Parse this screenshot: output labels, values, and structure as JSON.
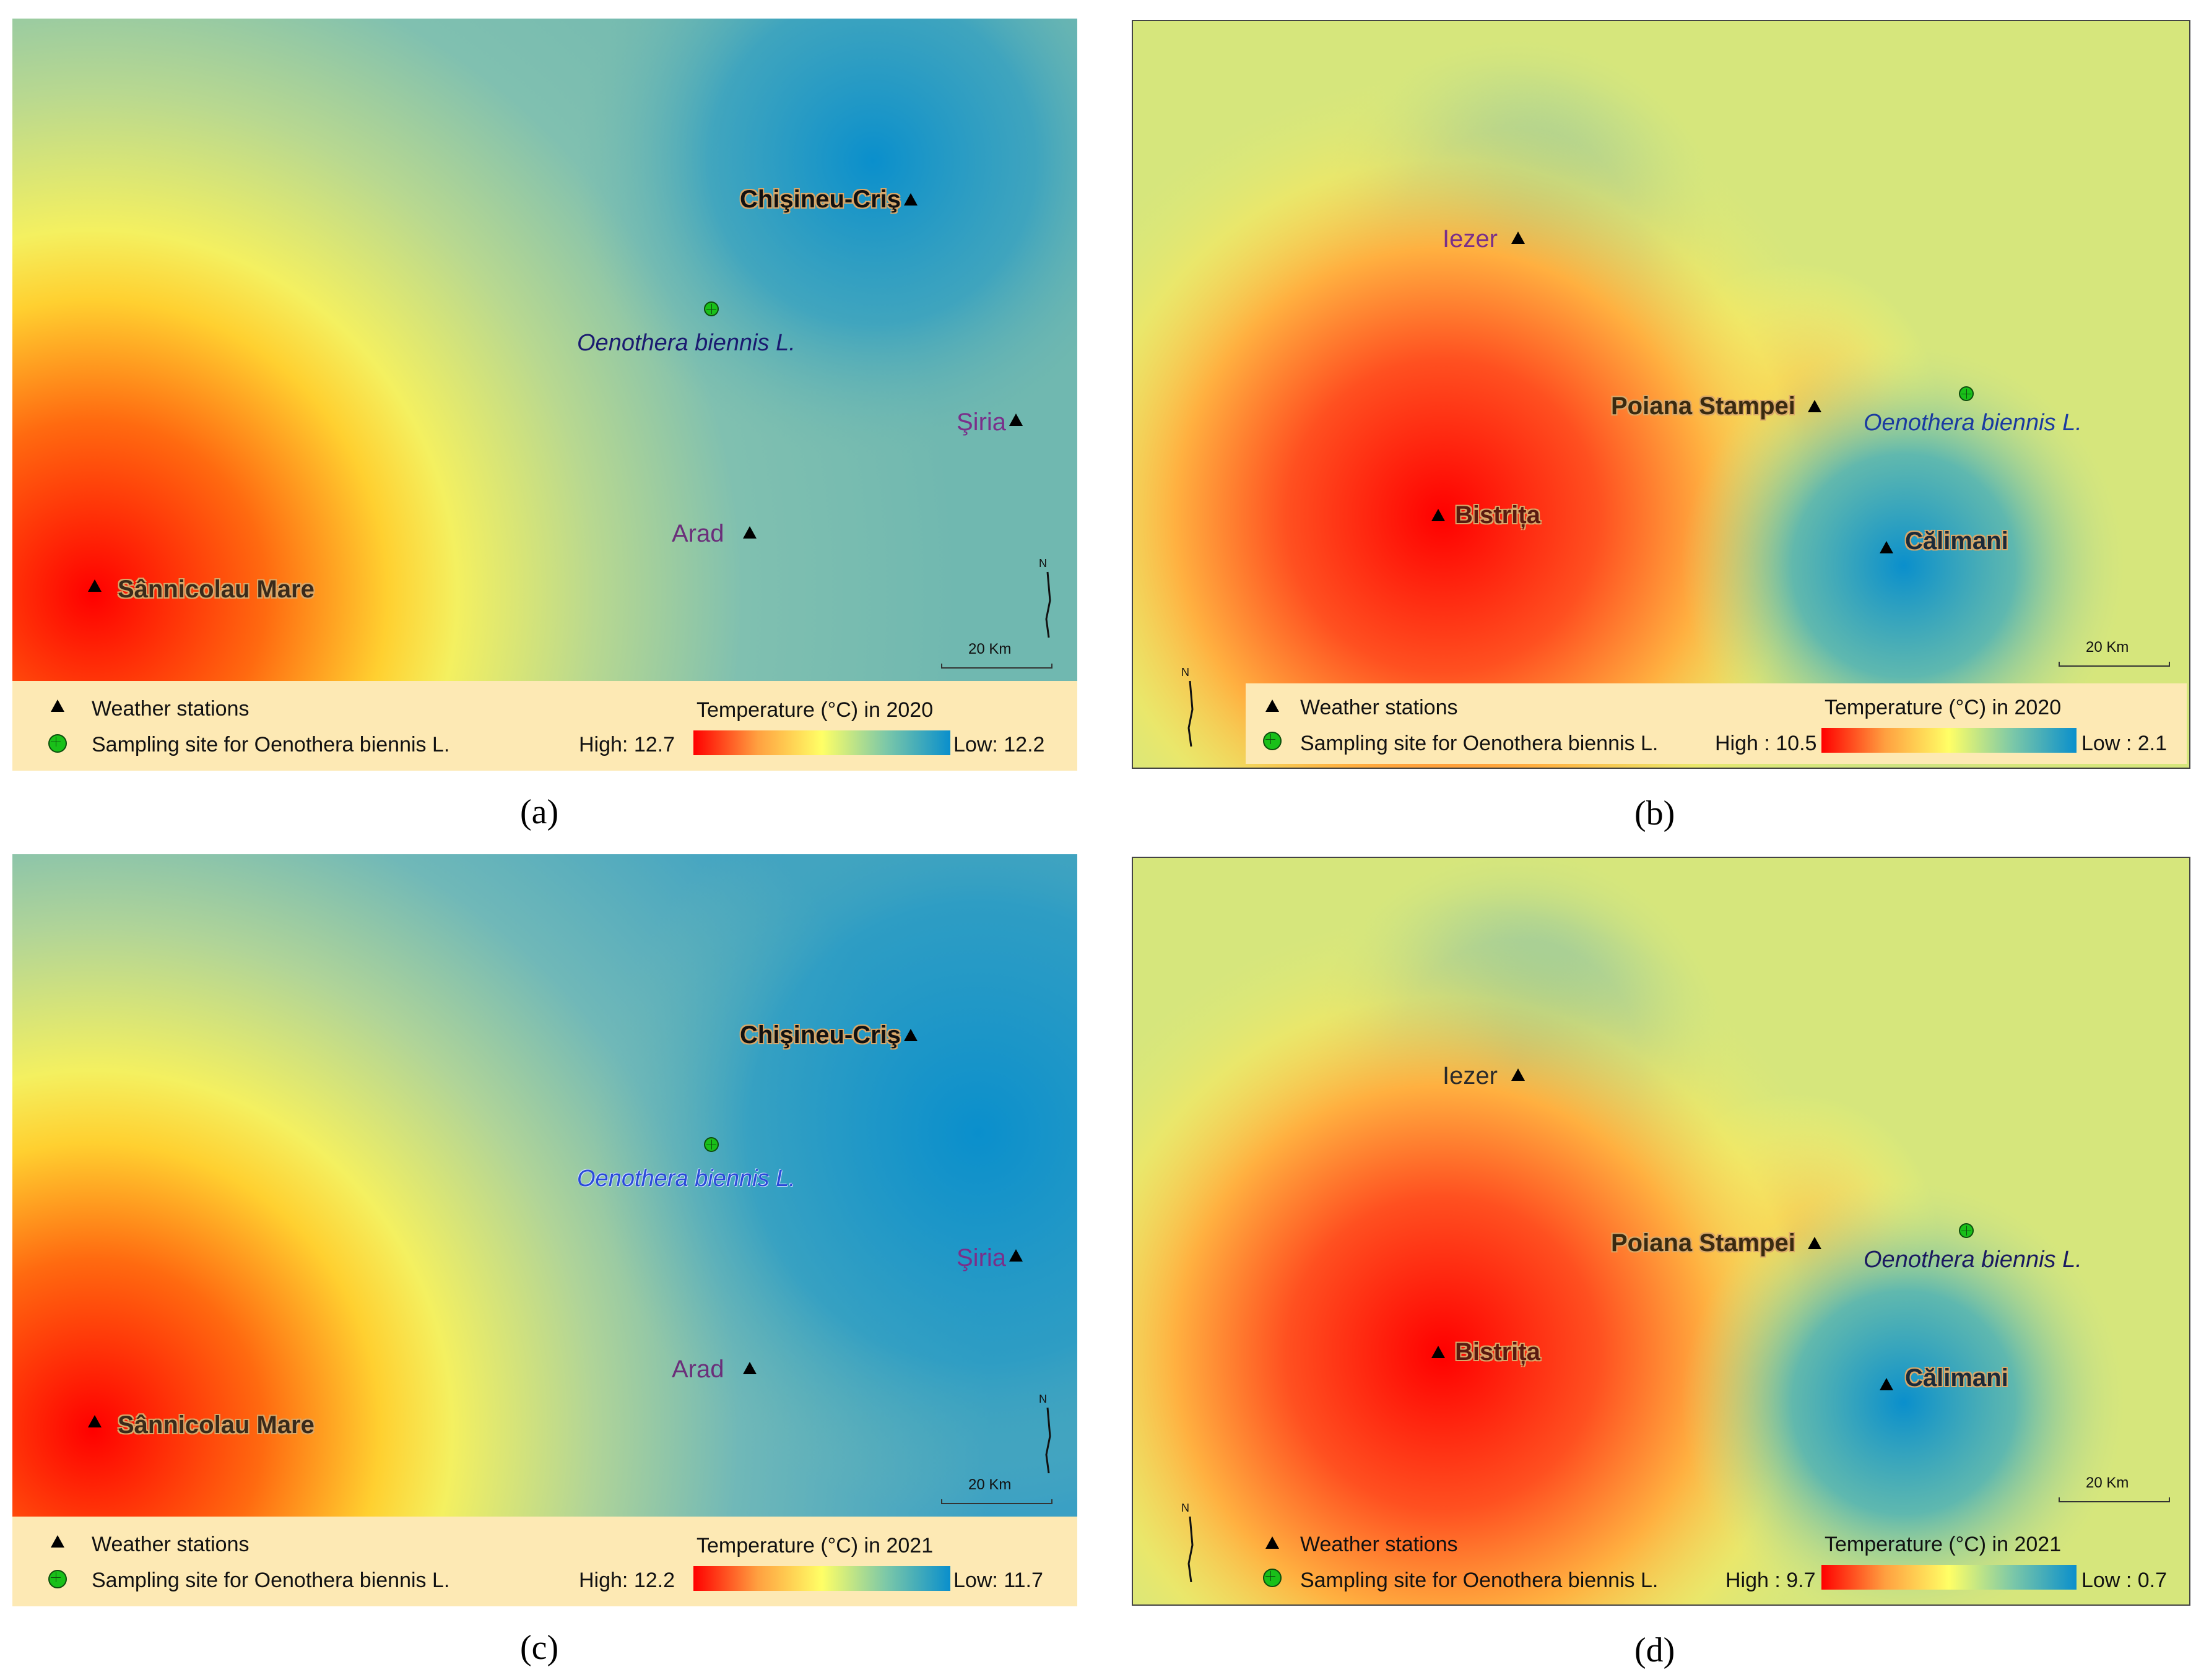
{
  "panels": {
    "a": {
      "caption": "(a)",
      "stations": {
        "s1": "Chişineu-Criş",
        "s2": "Şiria",
        "s3": "Arad",
        "s4": "Sânnicolau Mare"
      },
      "sampling_label": "Oenothera biennis L.",
      "legend": {
        "stations": "Weather stations",
        "site": "Sampling site for Oenothera biennis L.",
        "title": "Temperature (°C) in 2020",
        "high": "High: 12.7",
        "low": "Low: 12.2"
      },
      "scale": "20 Km",
      "north": "N"
    },
    "b": {
      "caption": "(b)",
      "stations": {
        "s1": "Iezer",
        "s2": "Poiana Stampei",
        "s3": "Bistrița",
        "s4": "Călimani"
      },
      "sampling_label": "Oenothera biennis L.",
      "legend": {
        "stations": "Weather stations",
        "site": "Sampling site for Oenothera biennis L.",
        "title": "Temperature (°C) in 2020",
        "high": "High : 10.5",
        "low": "Low : 2.1"
      },
      "scale": "20 Km",
      "north": "N"
    },
    "c": {
      "caption": "(c)",
      "stations": {
        "s1": "Chişineu-Criş",
        "s2": "Şiria",
        "s3": "Arad",
        "s4": "Sânnicolau Mare"
      },
      "sampling_label": "Oenothera biennis L.",
      "legend": {
        "stations": "Weather stations",
        "site": "Sampling site for Oenothera biennis L.",
        "title": "Temperature (°C) in 2021",
        "high": "High: 12.2",
        "low": "Low: 11.7"
      },
      "scale": "20 Km",
      "north": "N"
    },
    "d": {
      "caption": "(d)",
      "stations": {
        "s1": "Iezer",
        "s2": "Poiana Stampei",
        "s3": "Bistrița",
        "s4": "Călimani"
      },
      "sampling_label": "Oenothera biennis L.",
      "legend": {
        "stations": "Weather stations",
        "site": "Sampling site for Oenothera biennis L.",
        "title": "Temperature (°C) in 2021",
        "high": "High : 9.7",
        "low": "Low : 0.7"
      },
      "scale": "20 Km",
      "north": "N"
    }
  },
  "colors": {
    "high": "#ff0000",
    "mid": "#ffff66",
    "low": "#0a8fcc",
    "legend_bg": "#fde9b4",
    "site": "#19c019"
  },
  "icons": [
    "weather-station-triangle-icon",
    "sampling-site-icon",
    "north-arrow-icon"
  ]
}
